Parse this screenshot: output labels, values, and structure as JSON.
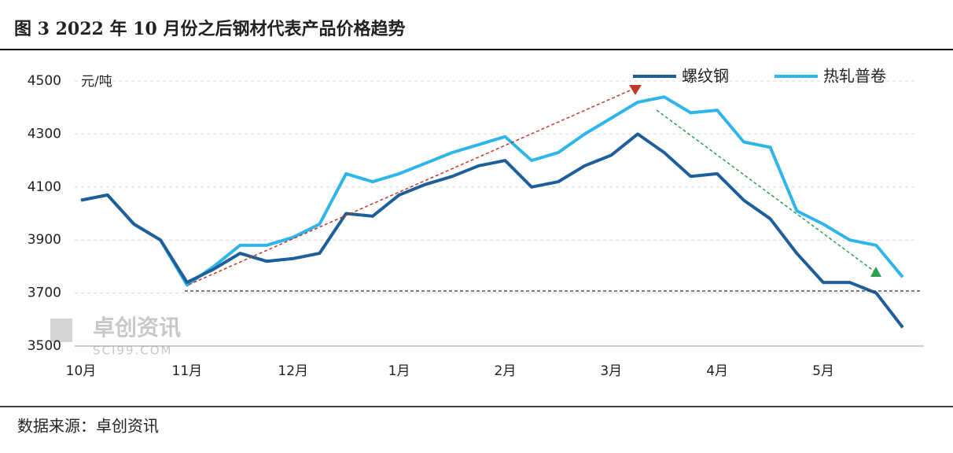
{
  "chart_data": {
    "type": "line",
    "title": "图 3 2022 年 10 月份之后钢材代表产品价格趋势",
    "y_label": "元/吨",
    "source": "数据来源：卓创资讯",
    "watermark": "卓创资讯",
    "watermark_sub": "SCI99.COM",
    "categories": [
      "10月",
      null,
      null,
      null,
      "11月",
      null,
      null,
      null,
      "12月",
      null,
      null,
      null,
      "1月",
      null,
      null,
      null,
      "2月",
      null,
      null,
      null,
      "3月",
      null,
      null,
      null,
      "4月",
      null,
      null,
      null,
      "5月",
      null,
      null,
      null
    ],
    "series": [
      {
        "name": "螺纹钢",
        "color": "#1f5f99",
        "values": [
          4050,
          4070,
          3960,
          3900,
          3740,
          3790,
          3850,
          3820,
          3830,
          3850,
          4000,
          3990,
          4070,
          4110,
          4140,
          4180,
          4200,
          4100,
          4120,
          4180,
          4220,
          4300,
          4230,
          4140,
          4150,
          4050,
          3980,
          3850,
          3740,
          3740,
          3700,
          3570
        ]
      },
      {
        "name": "热轧普卷",
        "color": "#2fb5ea",
        "values": [
          4050,
          4070,
          3960,
          3900,
          3730,
          3800,
          3880,
          3880,
          3910,
          3960,
          4150,
          4120,
          4150,
          4190,
          4230,
          4260,
          4290,
          4200,
          4230,
          4300,
          4360,
          4420,
          4440,
          4380,
          4390,
          4270,
          4250,
          4010,
          3960,
          3900,
          3880,
          3760
        ]
      }
    ],
    "ylim": [
      3500,
      4500
    ],
    "yticks": [
      3500,
      3700,
      3900,
      4100,
      4300,
      4500
    ],
    "grid": true
  }
}
